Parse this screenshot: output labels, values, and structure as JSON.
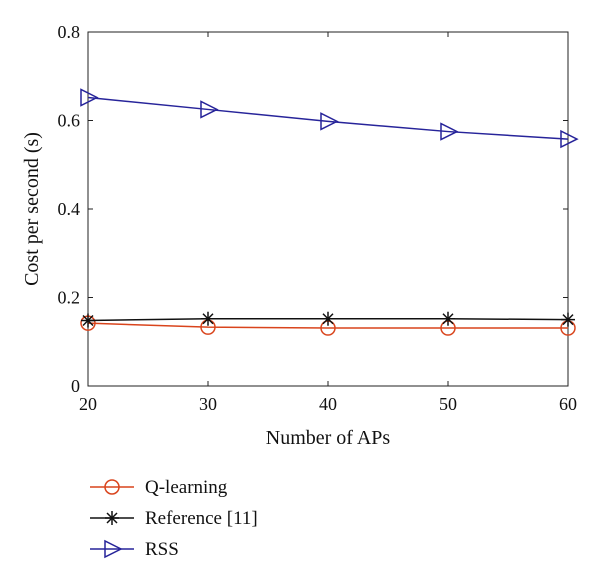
{
  "chart_data": {
    "type": "line",
    "xlabel": "Number of APs",
    "ylabel": "Cost per second (s)",
    "xlim": [
      20,
      60
    ],
    "ylim": [
      0,
      0.8
    ],
    "x_ticks": [
      20,
      30,
      40,
      50,
      60
    ],
    "x_tick_labels": [
      "20",
      "30",
      "40",
      "50",
      "60"
    ],
    "y_ticks": [
      0,
      0.2,
      0.4,
      0.6,
      0.8
    ],
    "y_tick_labels": [
      "0",
      "0.2",
      "0.4",
      "0.6",
      "0.8"
    ],
    "grid": false,
    "legend_position": "bottom",
    "x": [
      20,
      30,
      40,
      50,
      60
    ],
    "series": [
      {
        "name": "Q-learning",
        "values": [
          0.142,
          0.133,
          0.131,
          0.131,
          0.131
        ],
        "color": "#d9441c",
        "marker": "circle"
      },
      {
        "name": "Reference [11]",
        "values": [
          0.148,
          0.152,
          0.152,
          0.152,
          0.15
        ],
        "color": "#111111",
        "marker": "asterisk"
      },
      {
        "name": "RSS",
        "values": [
          0.652,
          0.625,
          0.598,
          0.575,
          0.558
        ],
        "color": "#27249a",
        "marker": "triangle-right"
      }
    ]
  }
}
